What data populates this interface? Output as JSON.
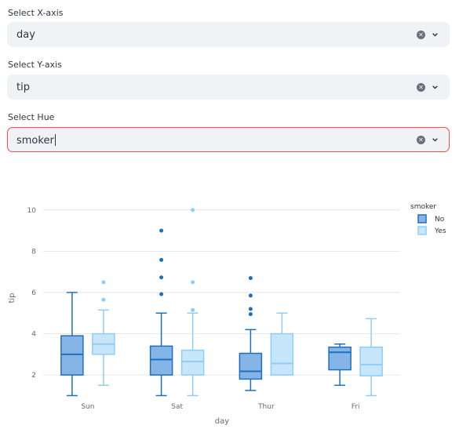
{
  "controls": {
    "x_axis": {
      "label": "Select X-axis",
      "value": "day"
    },
    "y_axis": {
      "label": "Select Y-axis",
      "value": "tip"
    },
    "hue": {
      "label": "Select Hue",
      "value": "smoker"
    }
  },
  "colors": {
    "accent": "#ff4b4b",
    "input_bg": "#f0f2f6",
    "no": "#1f6fbf",
    "yes": "#8ecdf5"
  },
  "chart_data": {
    "type": "box",
    "xlabel": "day",
    "ylabel": "tip",
    "categories": [
      "Sun",
      "Sat",
      "Thur",
      "Fri"
    ],
    "yticks": [
      2,
      4,
      6,
      8,
      10
    ],
    "ylim": [
      0.6,
      10.6
    ],
    "grid": true,
    "legend": {
      "title": "smoker",
      "position": "top-right"
    },
    "series": [
      {
        "name": "No",
        "color": "#1f6fbf",
        "fill": "#85b5e6",
        "boxes": [
          {
            "min": 1.0,
            "q1": 2.0,
            "median": 3.0,
            "q3": 3.9,
            "max": 6.0,
            "outliers": []
          },
          {
            "min": 1.0,
            "q1": 2.0,
            "median": 2.75,
            "q3": 3.4,
            "max": 5.0,
            "outliers": [
              5.92,
              6.73,
              7.58,
              9.0
            ]
          },
          {
            "min": 1.25,
            "q1": 1.8,
            "median": 2.18,
            "q3": 3.05,
            "max": 4.2,
            "outliers": [
              4.95,
              5.2,
              5.85,
              6.7
            ]
          },
          {
            "min": 1.5,
            "q1": 2.25,
            "median": 3.1,
            "q3": 3.35,
            "max": 3.5,
            "outliers": []
          }
        ]
      },
      {
        "name": "Yes",
        "color": "#8ecdf5",
        "fill": "#c7e6fb",
        "boxes": [
          {
            "min": 1.5,
            "q1": 3.0,
            "median": 3.5,
            "q3": 4.0,
            "max": 5.15,
            "outliers": [
              5.65,
              6.5
            ]
          },
          {
            "min": 1.0,
            "q1": 2.0,
            "median": 2.65,
            "q3": 3.2,
            "max": 5.0,
            "outliers": [
              5.15,
              6.5,
              10.0
            ]
          },
          {
            "min": 2.0,
            "q1": 2.0,
            "median": 2.56,
            "q3": 4.0,
            "max": 5.0,
            "outliers": []
          },
          {
            "min": 1.0,
            "q1": 1.96,
            "median": 2.5,
            "q3": 3.35,
            "max": 4.73,
            "outliers": []
          }
        ]
      }
    ]
  }
}
